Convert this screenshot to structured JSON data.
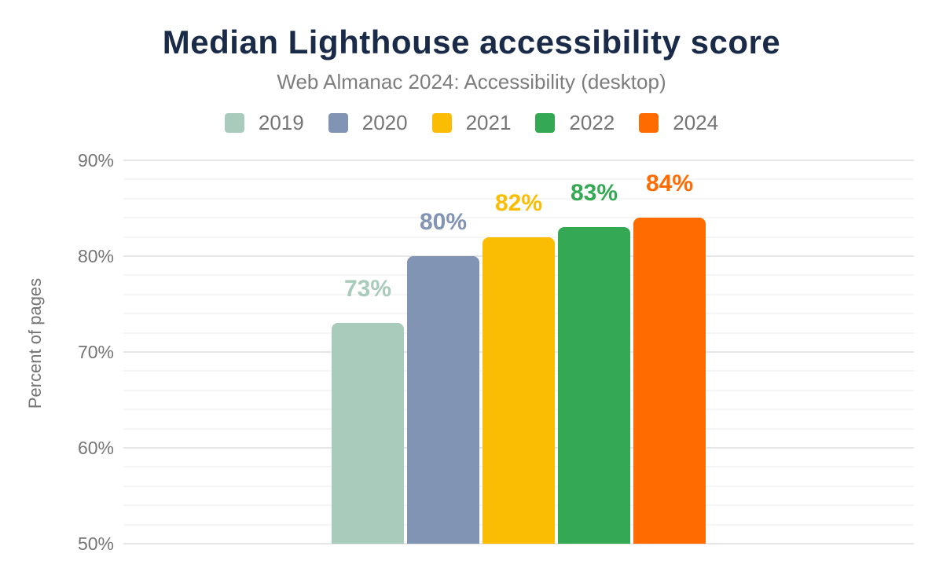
{
  "chart_data": {
    "type": "bar",
    "title": "Median Lighthouse accessibility score",
    "subtitle": "Web Almanac 2024: Accessibility (desktop)",
    "ylabel": "Percent of pages",
    "xlabel": "",
    "categories": [
      "2019",
      "2020",
      "2021",
      "2022",
      "2024"
    ],
    "values": [
      73,
      80,
      82,
      83,
      84
    ],
    "value_labels": [
      "73%",
      "80%",
      "82%",
      "83%",
      "84%"
    ],
    "series_colors": [
      "#a9cbbb",
      "#8194b3",
      "#fbbc04",
      "#34a853",
      "#ff6b00"
    ],
    "ylim": [
      50,
      90
    ],
    "ytick_major_step": 10,
    "ytick_minor_step": 2,
    "ytick_labels": [
      "50%",
      "60%",
      "70%",
      "80%",
      "90%"
    ],
    "grid": "on",
    "legend_position": "top",
    "legend_entries": [
      "2019",
      "2020",
      "2021",
      "2022",
      "2024"
    ]
  },
  "colors": {
    "background": "#ffffff",
    "title_text": "#1a2b49",
    "subtitle_text": "#7d7d7d",
    "axis_text": "#757575",
    "grid_major": "#e7e7e7",
    "grid_minor": "#f5f5f5"
  }
}
